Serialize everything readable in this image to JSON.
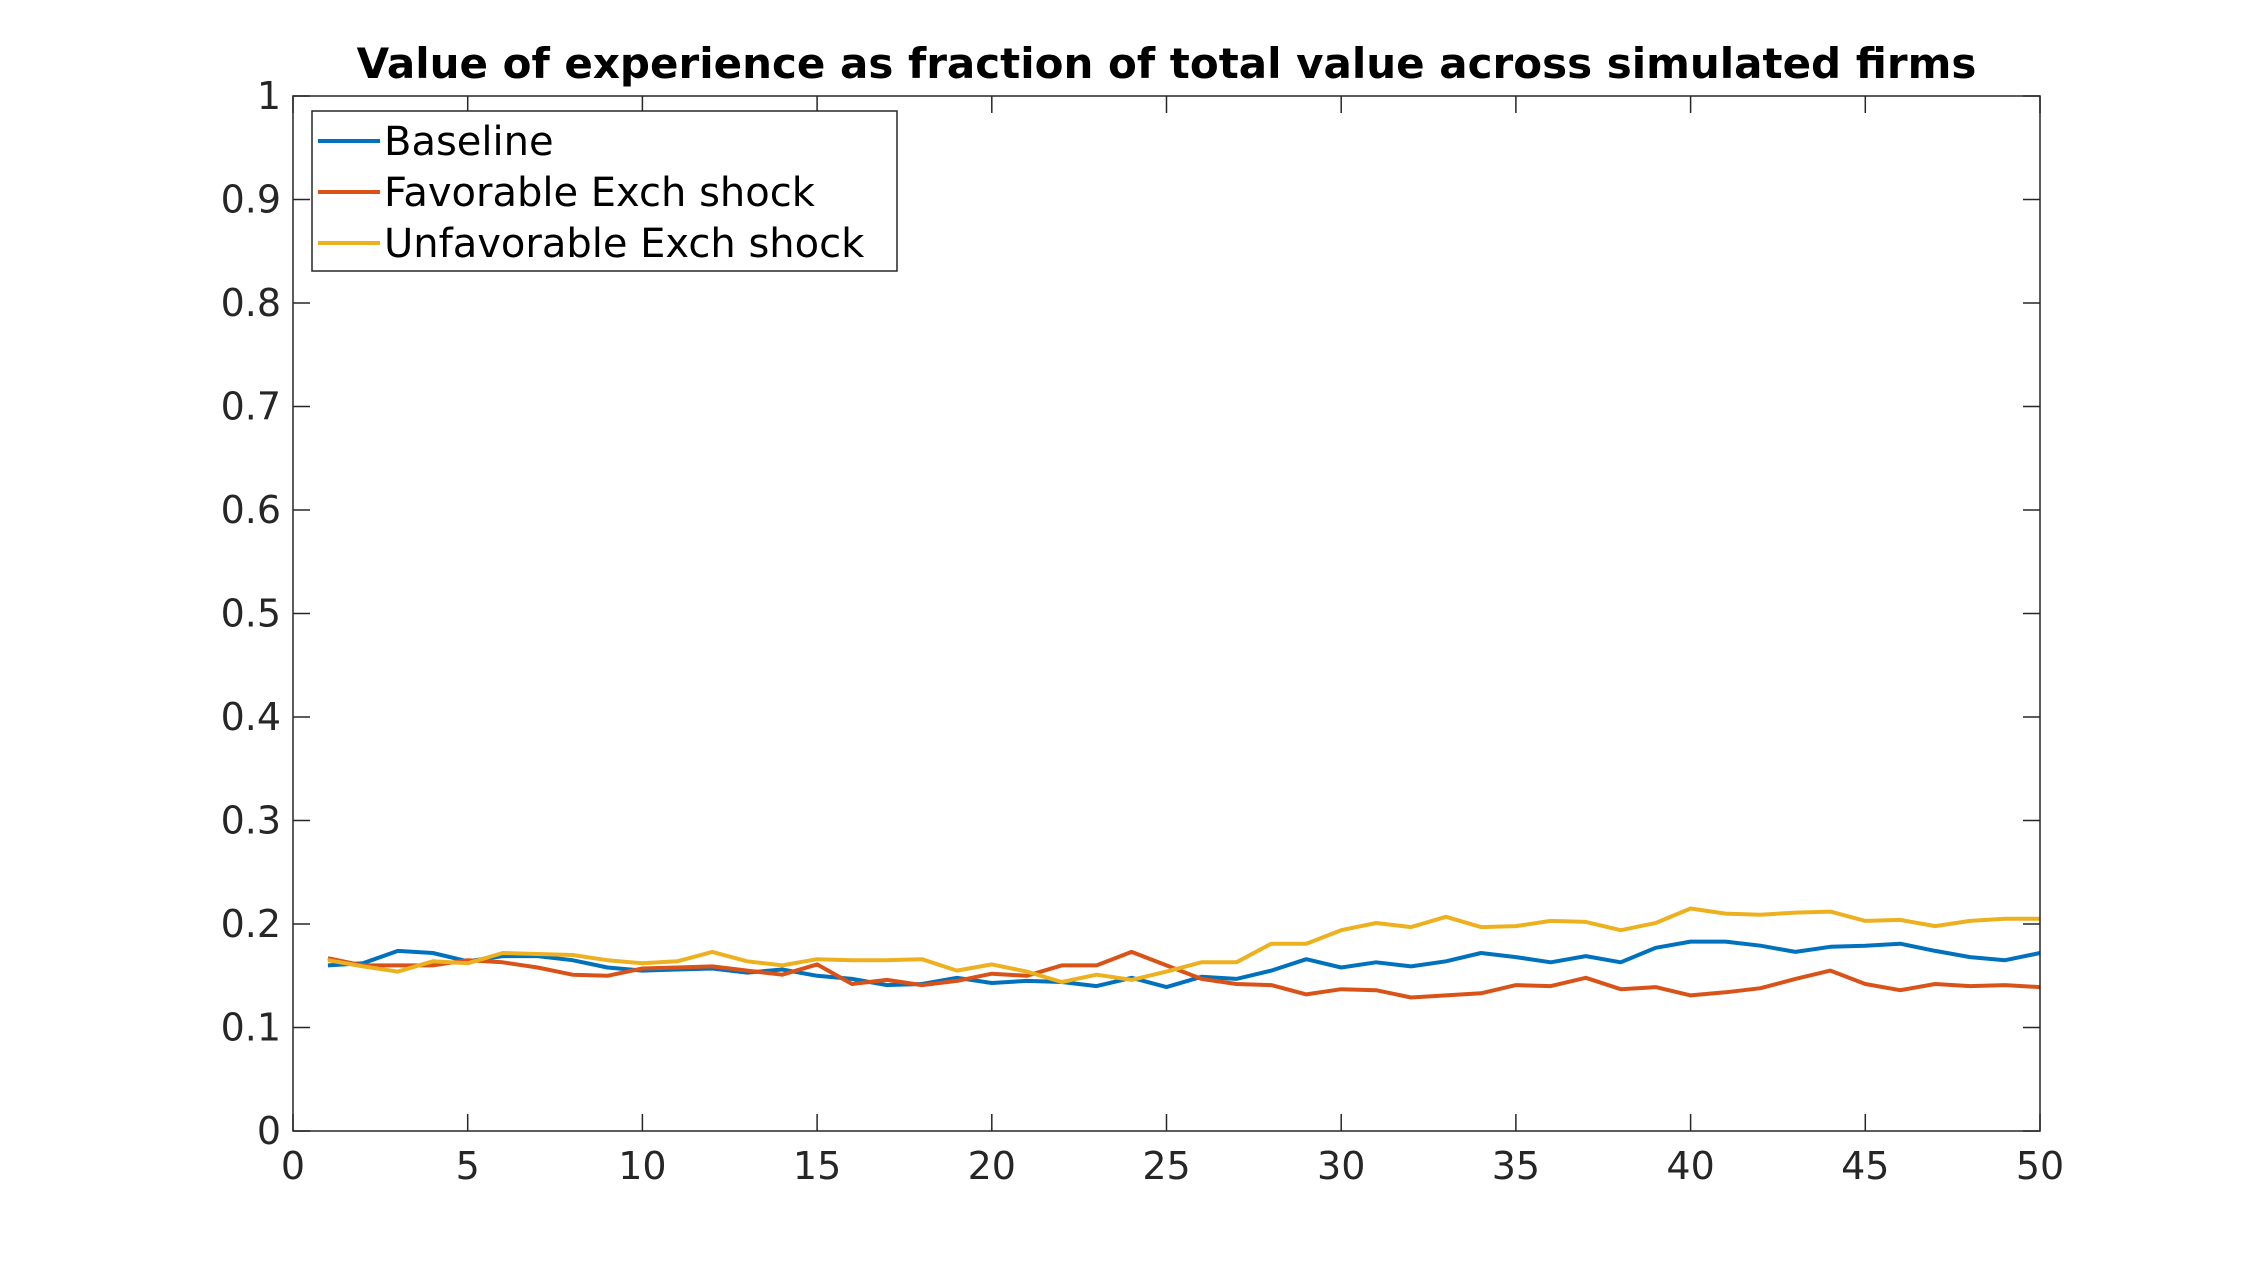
{
  "chart_data": {
    "type": "line",
    "title": "Value of experience as fraction of total value across simulated firms",
    "xlabel": "",
    "ylabel": "",
    "xlim": [
      0,
      50
    ],
    "ylim": [
      0,
      1
    ],
    "xticks": [
      0,
      5,
      10,
      15,
      20,
      25,
      30,
      35,
      40,
      45,
      50
    ],
    "xtick_labels": [
      "0",
      "5",
      "10",
      "15",
      "20",
      "25",
      "30",
      "35",
      "40",
      "45",
      "50"
    ],
    "yticks": [
      0,
      0.1,
      0.2,
      0.3,
      0.4,
      0.5,
      0.6,
      0.7,
      0.8,
      0.9,
      1
    ],
    "ytick_labels": [
      "0",
      "0.1",
      "0.2",
      "0.3",
      "0.4",
      "0.5",
      "0.6",
      "0.7",
      "0.8",
      "0.9",
      "1"
    ],
    "grid": false,
    "legend_position": "top-left",
    "x": [
      1,
      2,
      3,
      4,
      5,
      6,
      7,
      8,
      9,
      10,
      11,
      12,
      13,
      14,
      15,
      16,
      17,
      18,
      19,
      20,
      21,
      22,
      23,
      24,
      25,
      26,
      27,
      28,
      29,
      30,
      31,
      32,
      33,
      34,
      35,
      36,
      37,
      38,
      39,
      40,
      41,
      42,
      43,
      44,
      45,
      46,
      47,
      48,
      49,
      50
    ],
    "series": [
      {
        "name": "Baseline",
        "color": "#0072BD",
        "values": [
          0.16,
          0.162,
          0.174,
          0.172,
          0.164,
          0.169,
          0.169,
          0.165,
          0.158,
          0.155,
          0.156,
          0.157,
          0.153,
          0.156,
          0.15,
          0.147,
          0.141,
          0.142,
          0.148,
          0.143,
          0.145,
          0.144,
          0.14,
          0.148,
          0.139,
          0.149,
          0.147,
          0.155,
          0.166,
          0.158,
          0.163,
          0.159,
          0.164,
          0.172,
          0.168,
          0.163,
          0.169,
          0.163,
          0.177,
          0.183,
          0.183,
          0.179,
          0.173,
          0.178,
          0.179,
          0.181,
          0.174,
          0.168,
          0.165,
          0.172
        ]
      },
      {
        "name": "Favorable Exch shock",
        "color": "#D95319",
        "values": [
          0.167,
          0.16,
          0.16,
          0.16,
          0.165,
          0.163,
          0.158,
          0.151,
          0.15,
          0.157,
          0.158,
          0.159,
          0.155,
          0.151,
          0.161,
          0.142,
          0.146,
          0.141,
          0.145,
          0.152,
          0.15,
          0.16,
          0.16,
          0.173,
          0.16,
          0.147,
          0.142,
          0.141,
          0.132,
          0.137,
          0.136,
          0.129,
          0.131,
          0.133,
          0.141,
          0.14,
          0.148,
          0.137,
          0.139,
          0.131,
          0.134,
          0.138,
          0.147,
          0.155,
          0.142,
          0.136,
          0.142,
          0.14,
          0.141,
          0.139
        ]
      },
      {
        "name": "Unfavorable Exch shock",
        "color": "#EDB120",
        "values": [
          0.165,
          0.159,
          0.154,
          0.164,
          0.162,
          0.172,
          0.171,
          0.17,
          0.165,
          0.162,
          0.164,
          0.173,
          0.164,
          0.16,
          0.166,
          0.165,
          0.165,
          0.166,
          0.155,
          0.161,
          0.154,
          0.144,
          0.151,
          0.146,
          0.154,
          0.163,
          0.163,
          0.181,
          0.181,
          0.194,
          0.201,
          0.197,
          0.207,
          0.197,
          0.198,
          0.203,
          0.202,
          0.194,
          0.201,
          0.215,
          0.21,
          0.209,
          0.211,
          0.212,
          0.203,
          0.204,
          0.198,
          0.203,
          0.205,
          0.205
        ]
      }
    ]
  }
}
